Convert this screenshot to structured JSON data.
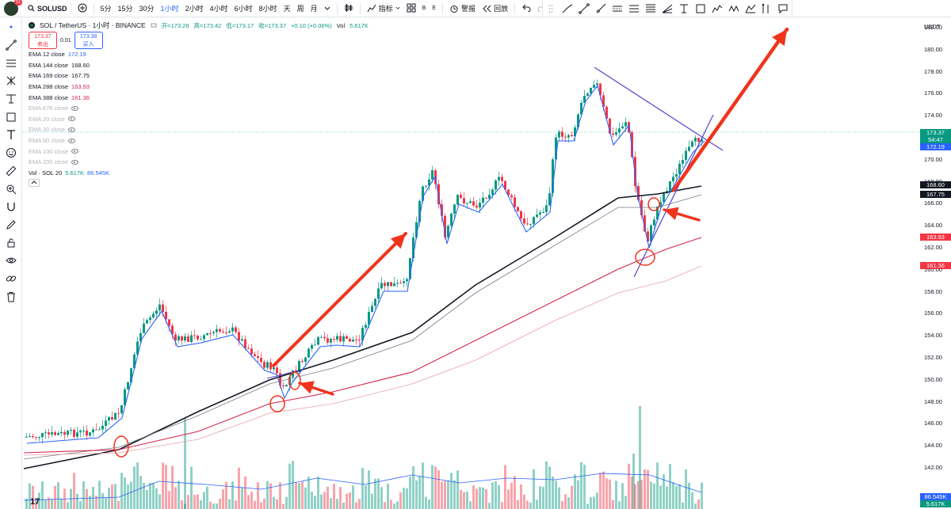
{
  "topbar": {
    "badge": "11",
    "symbol": "SOLUSD",
    "intervals": [
      "5分",
      "15分",
      "30分",
      "1小时",
      "2小时",
      "4小时",
      "6小时",
      "8小时",
      "天",
      "周",
      "月"
    ],
    "active_interval": "1小时",
    "indicators_label": "指标",
    "alert_label": "警报",
    "replay_label": "回放",
    "layout_b_label": "B",
    "layout_e_label": "E"
  },
  "legend": {
    "pair": "SOL / TetherUS · 1小时 · BINANCE",
    "open": "开=173.26",
    "high": "高=173.42",
    "low": "低=173.17",
    "close": "收=173.37",
    "change": "+0.10 (+0.06%)",
    "vol_label": "Vol",
    "vol_value": "5.617K",
    "sell_price": "173.37",
    "sell_label": "卖出",
    "spread": "0.01",
    "buy_price": "173.38",
    "buy_label": "买入",
    "emas": [
      {
        "label": "EMA 12 close",
        "value": "172.19",
        "color": "#2962ff",
        "visible": true
      },
      {
        "label": "EMA 144 close",
        "value": "168.60",
        "color": "#131722",
        "visible": true
      },
      {
        "label": "EMA 169 close",
        "value": "167.75",
        "color": "#131722",
        "visible": true
      },
      {
        "label": "EMA 288 close",
        "value": "163.93",
        "color": "#d4254b",
        "visible": true
      },
      {
        "label": "EMA 388 close",
        "value": "161.36",
        "color": "#d4254b",
        "visible": true
      },
      {
        "label": "EMA 676 close",
        "value": "",
        "color": "#b2b5be",
        "visible": false
      },
      {
        "label": "EMA 20 close",
        "value": "",
        "color": "#b2b5be",
        "visible": false
      },
      {
        "label": "EMA 30 close",
        "value": "",
        "color": "#b2b5be",
        "visible": false
      },
      {
        "label": "EMA 60 close",
        "value": "",
        "color": "#b2b5be",
        "visible": false
      },
      {
        "label": "EMA 100 close",
        "value": "",
        "color": "#b2b5be",
        "visible": false
      },
      {
        "label": "EMA 200 close",
        "value": "",
        "color": "#b2b5be",
        "visible": false
      }
    ],
    "volume": {
      "label": "Vol · SOL 20",
      "value1": "5.617K",
      "value2": "86.545K"
    }
  },
  "price_axis": {
    "currency": "USDT",
    "ticks": [
      "182.00",
      "180.00",
      "178.00",
      "176.00",
      "174.00",
      "172.00",
      "170.00",
      "168.00",
      "166.00",
      "164.00",
      "162.00",
      "160.00",
      "158.00",
      "156.00",
      "154.00",
      "152.00",
      "150.00",
      "148.00",
      "146.00",
      "144.00",
      "142.00"
    ],
    "tags": [
      {
        "text": "173.37",
        "bg": "#089981"
      },
      {
        "text": "54:47",
        "bg": "#089981"
      },
      {
        "text": "172.19",
        "bg": "#2962ff"
      },
      {
        "text": "168.60",
        "bg": "#131722"
      },
      {
        "text": "167.75",
        "bg": "#131722"
      },
      {
        "text": "163.93",
        "bg": "#f23645"
      },
      {
        "text": "161.36",
        "bg": "#f23645"
      },
      {
        "text": "86.545K",
        "bg": "#2962ff"
      },
      {
        "text": "5.617K",
        "bg": "#089981"
      }
    ]
  },
  "colors": {
    "up": "#089981",
    "down": "#f23645",
    "annotation": "#f0341c",
    "trendline": "#5a4fcf"
  },
  "tv_logo": "17"
}
